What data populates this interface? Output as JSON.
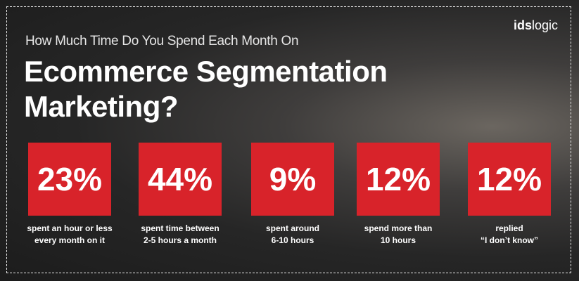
{
  "header": {
    "subtitle": "How Much Time Do You Spend Each Month On",
    "title_lines": [
      "Ecommerce Segmentation",
      "Marketing?"
    ]
  },
  "logo": {
    "bold": "ids",
    "light": "logic"
  },
  "stats": [
    {
      "value": "23%",
      "label_lines": [
        "spent an hour or less",
        "every month on it"
      ]
    },
    {
      "value": "44%",
      "label_lines": [
        "spent time between",
        "2-5 hours a month"
      ]
    },
    {
      "value": "9%",
      "label_lines": [
        "spent around",
        "6-10 hours"
      ]
    },
    {
      "value": "12%",
      "label_lines": [
        "spend more than",
        "10 hours"
      ]
    },
    {
      "value": "12%",
      "label_lines": [
        "replied",
        "“I don’t know”"
      ]
    }
  ]
}
